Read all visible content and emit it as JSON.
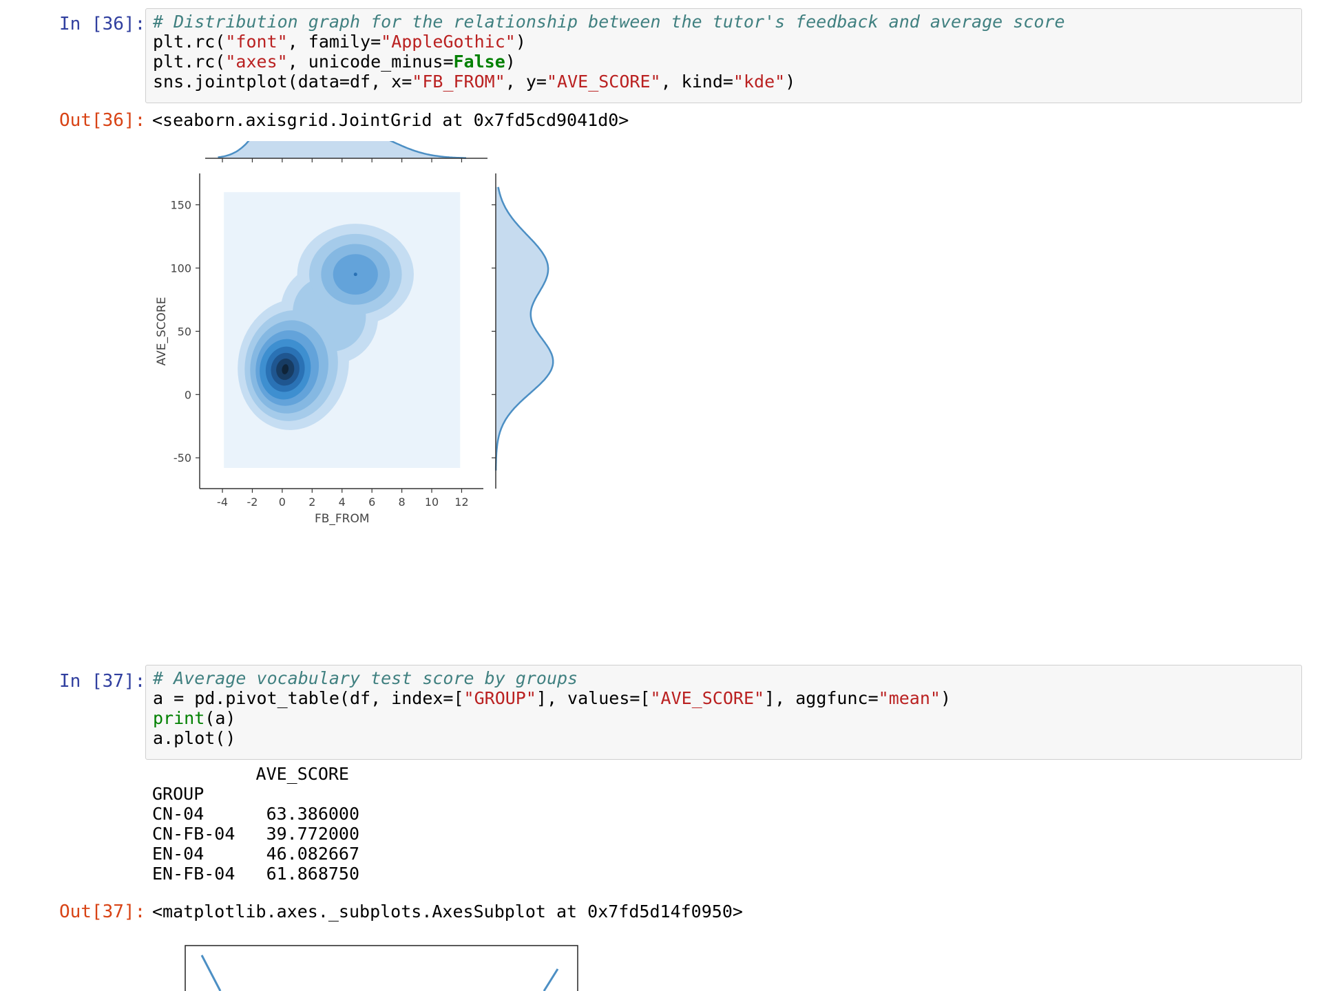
{
  "cell36": {
    "in_prompt": "In [36]:",
    "lines": [
      [
        {
          "t": "# Distribution graph for the relationship between the tutor's feedback and average score",
          "c": "cm"
        }
      ],
      [
        {
          "t": "plt.rc(",
          "c": ""
        },
        {
          "t": "\"font\"",
          "c": "st"
        },
        {
          "t": ", family=",
          "c": ""
        },
        {
          "t": "\"AppleGothic\"",
          "c": "st"
        },
        {
          "t": ")",
          "c": ""
        }
      ],
      [
        {
          "t": "plt.rc(",
          "c": ""
        },
        {
          "t": "\"axes\"",
          "c": "st"
        },
        {
          "t": ", unicode_minus=",
          "c": ""
        },
        {
          "t": "False",
          "c": "kw"
        },
        {
          "t": ")",
          "c": ""
        }
      ],
      [
        {
          "t": "sns.jointplot(data=df, x=",
          "c": ""
        },
        {
          "t": "\"FB_FROM\"",
          "c": "st"
        },
        {
          "t": ", y=",
          "c": ""
        },
        {
          "t": "\"AVE_SCORE\"",
          "c": "st"
        },
        {
          "t": ", kind=",
          "c": ""
        },
        {
          "t": "\"kde\"",
          "c": "st"
        },
        {
          "t": ")",
          "c": ""
        }
      ]
    ],
    "out_prompt": "Out[36]:",
    "out_text": "<seaborn.axisgrid.JointGrid at 0x7fd5cd9041d0>"
  },
  "chart_data": {
    "type": "kde-joint",
    "xlabel": "FB_FROM",
    "ylabel": "AVE_SCORE",
    "xticks": [
      -4,
      -2,
      0,
      2,
      4,
      6,
      8,
      10,
      12
    ],
    "yticks": [
      -50,
      0,
      50,
      100,
      150
    ],
    "xlim": [
      -4.6,
      12.9
    ],
    "ylim": [
      -70,
      165
    ],
    "fill_extent": {
      "x": [
        -3.9,
        11.9
      ],
      "y": [
        -58,
        160
      ]
    },
    "modes": [
      {
        "x": 0.2,
        "y": 20,
        "density": "highest"
      },
      {
        "x": 4.9,
        "y": 95,
        "density": "secondary"
      }
    ],
    "marginal_x_peaks": [
      {
        "x": 0.3,
        "rel": 1.0
      },
      {
        "x": 5.0,
        "rel": 0.45
      }
    ],
    "marginal_y_peaks": [
      {
        "y": 100,
        "rel": 0.92
      },
      {
        "y": 25,
        "rel": 1.0
      }
    ],
    "colors": {
      "line": "#4c8fc4",
      "fill": "#c6dbef",
      "background": "#eaf3fb",
      "levels": [
        "#c5ddf2",
        "#a5cbea",
        "#85b8e2",
        "#63a3da",
        "#3e8fd0",
        "#2a72b5",
        "#1f5690",
        "#173c63",
        "#0f2438"
      ]
    }
  },
  "cell37": {
    "in_prompt": "In [37]:",
    "lines": [
      [
        {
          "t": "# Average vocabulary test score by groups",
          "c": "cm"
        }
      ],
      [
        {
          "t": "a = pd.pivot_table(df, index=[",
          "c": ""
        },
        {
          "t": "\"GROUP\"",
          "c": "st"
        },
        {
          "t": "], values=[",
          "c": ""
        },
        {
          "t": "\"AVE_SCORE\"",
          "c": "st"
        },
        {
          "t": "], aggfunc=",
          "c": ""
        },
        {
          "t": "\"mean\"",
          "c": "st"
        },
        {
          "t": ")",
          "c": ""
        }
      ],
      [
        {
          "t": "print",
          "c": "bi"
        },
        {
          "t": "(a)",
          "c": ""
        }
      ],
      [
        {
          "t": "a.plot()",
          "c": ""
        }
      ]
    ],
    "stdout": [
      "          AVE_SCORE",
      "GROUP",
      "CN-04      63.386000",
      "CN-FB-04   39.772000",
      "EN-04      46.082667",
      "EN-FB-04   61.868750"
    ],
    "out_prompt": "Out[37]:",
    "out_text": "<matplotlib.axes._subplots.AxesSubplot at 0x7fd5d14f0950>"
  }
}
